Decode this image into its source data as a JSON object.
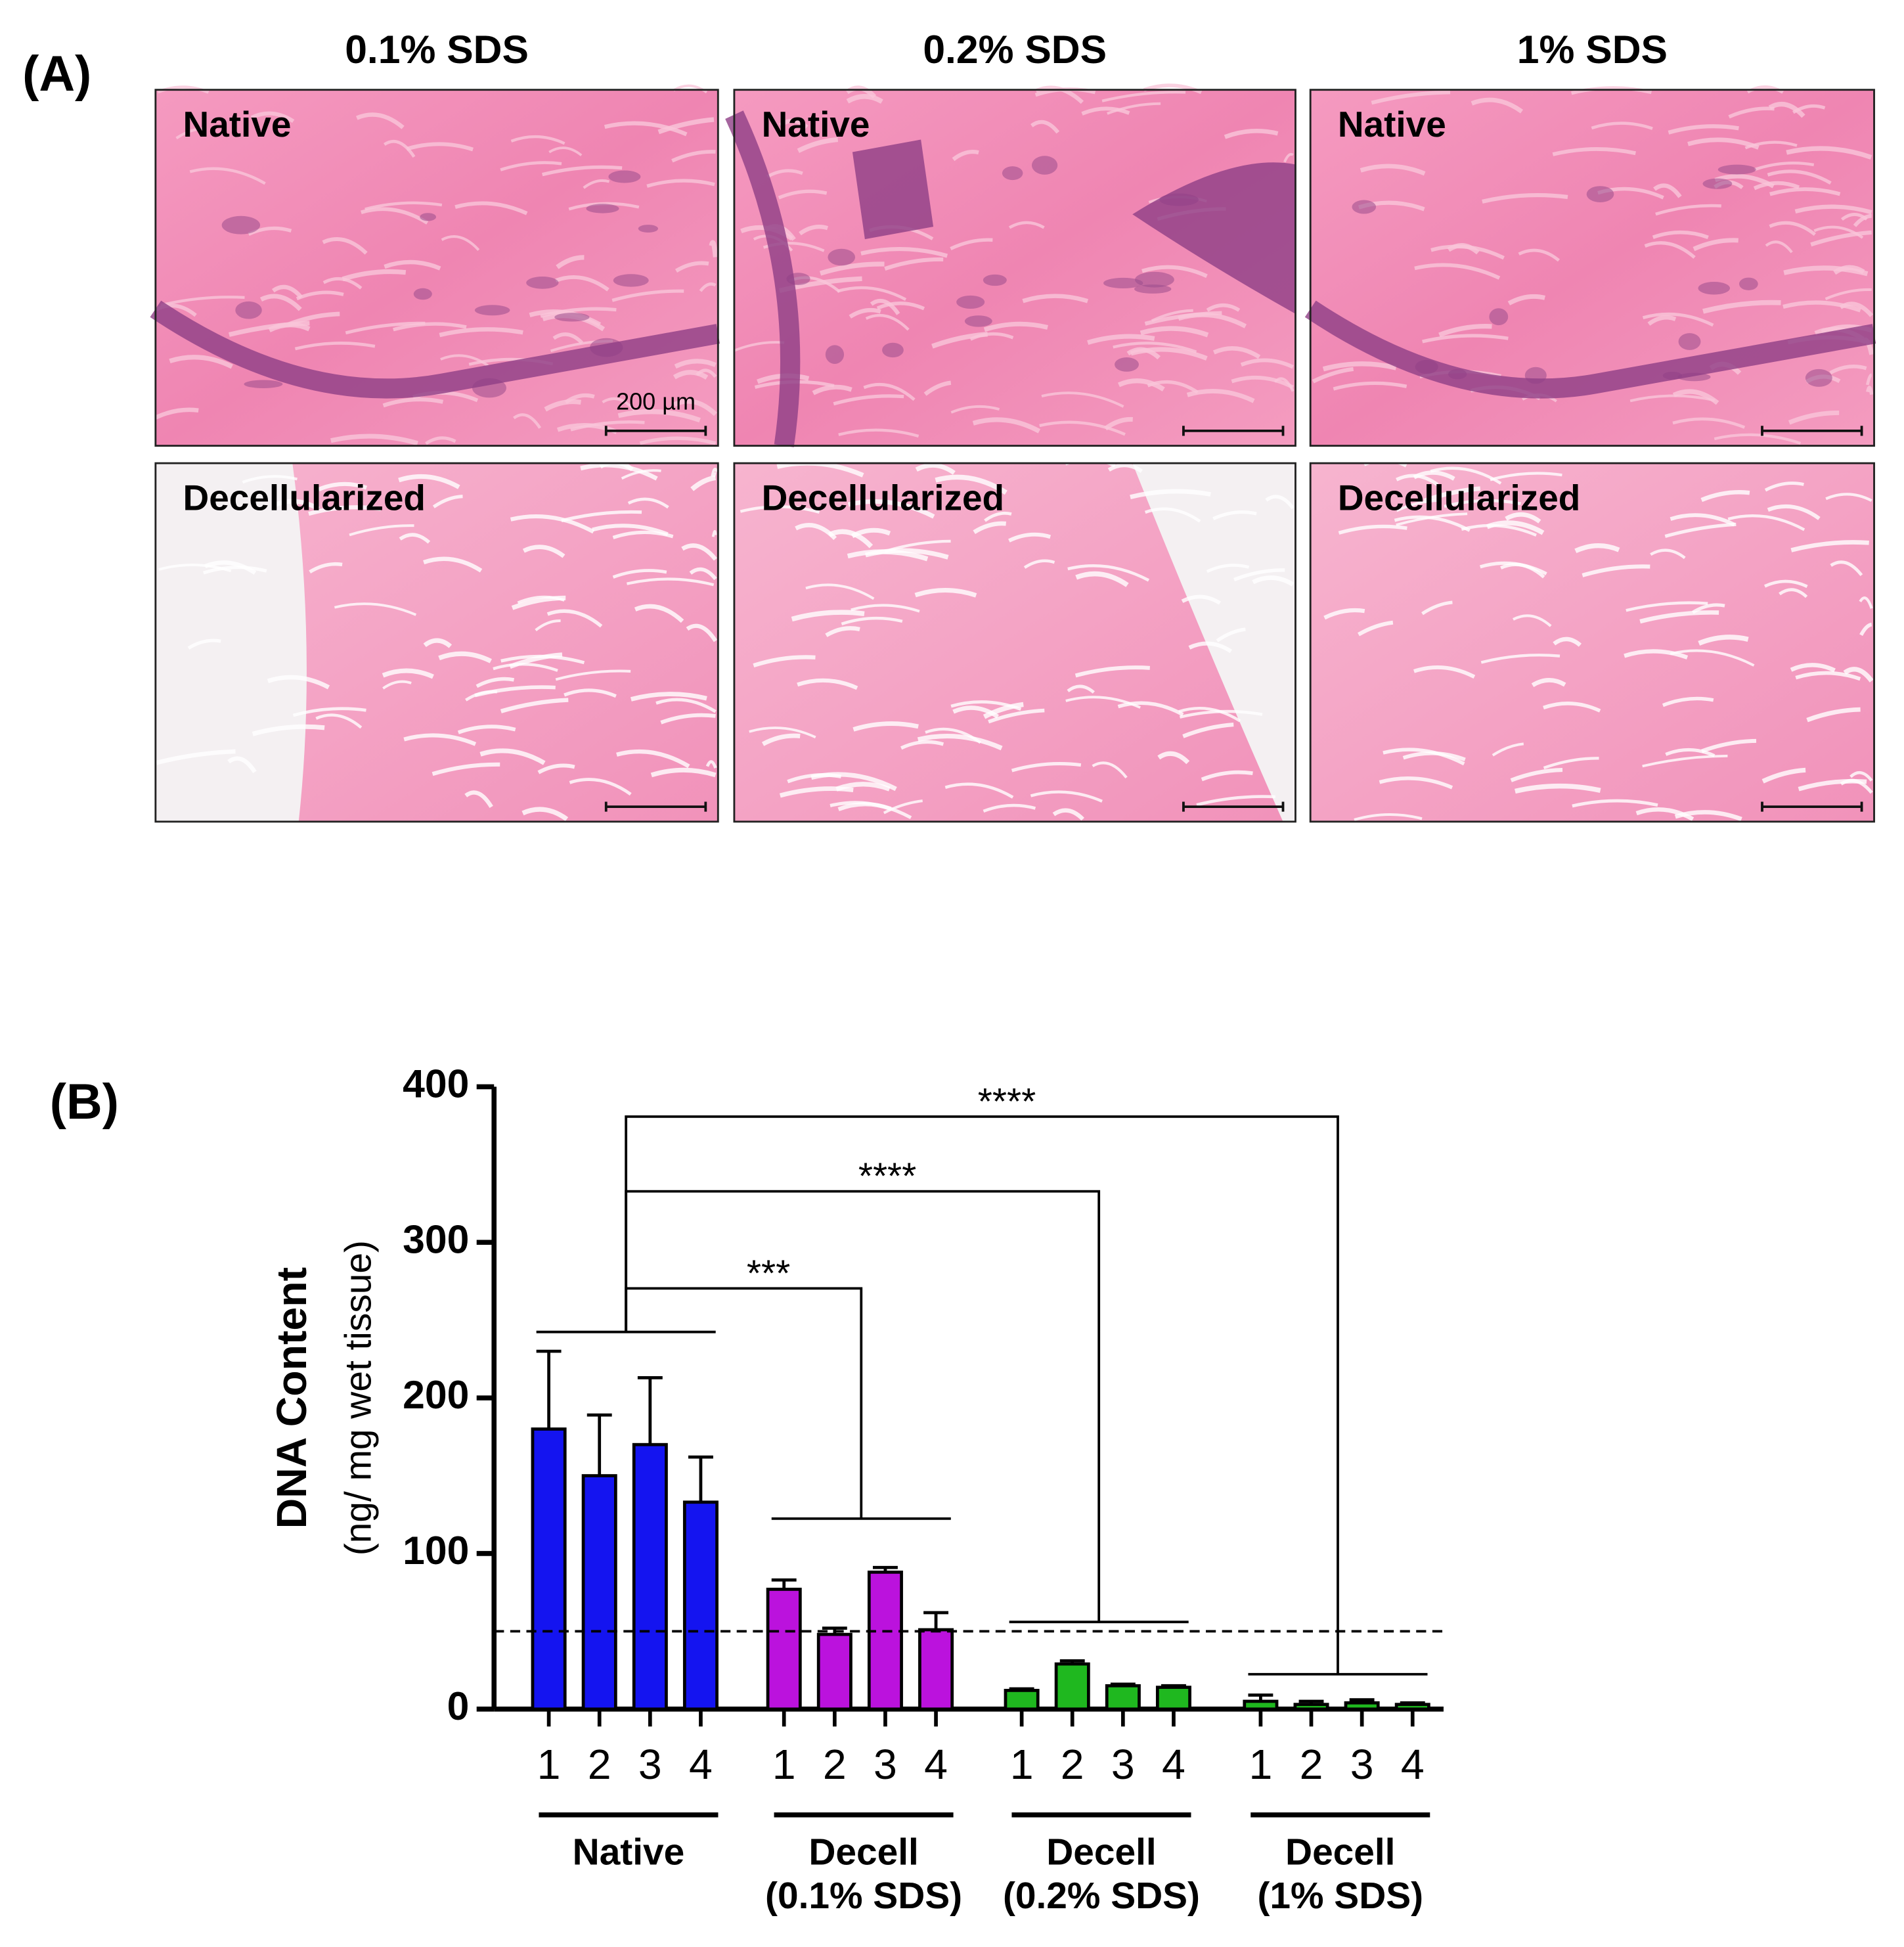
{
  "panel_a": {
    "label": "(A)",
    "columns": [
      "0.1% SDS",
      "0.2% SDS",
      "1% SDS"
    ],
    "rows": [
      "Native",
      "Decellularized"
    ],
    "scale_bar": "200 µm"
  },
  "chart_data": {
    "type": "bar",
    "panel_label": "(B)",
    "y_label": "DNA Content",
    "y_sublabel": "(ng/ mg wet tissue)",
    "categories": [
      "1",
      "2",
      "3",
      "4"
    ],
    "series": [
      {
        "name": [
          "Native"
        ],
        "color": "#1414f0",
        "values": [
          180,
          150,
          170,
          133
        ],
        "errors": [
          50,
          39,
          43,
          29
        ]
      },
      {
        "name": [
          "Decell",
          "(0.1% SDS)"
        ],
        "color": "#bb12dd",
        "values": [
          77,
          48,
          88,
          51
        ],
        "errors": [
          6,
          4,
          3,
          11
        ]
      },
      {
        "name": [
          "Decell",
          "(0.2% SDS)"
        ],
        "color": "#1fb81f",
        "values": [
          12,
          29,
          15,
          14
        ],
        "errors": [
          1,
          2,
          1,
          1
        ]
      },
      {
        "name": [
          "Decell",
          "(1% SDS)"
        ],
        "color": "#1fb81f",
        "values": [
          5,
          3,
          4,
          3
        ],
        "errors": [
          4,
          2,
          2,
          1
        ]
      }
    ],
    "significance": [
      "***",
      "****",
      "****"
    ],
    "reference_line": 50,
    "ylim": [
      0,
      400
    ],
    "yticks": [
      0,
      100,
      200,
      300,
      400
    ]
  }
}
